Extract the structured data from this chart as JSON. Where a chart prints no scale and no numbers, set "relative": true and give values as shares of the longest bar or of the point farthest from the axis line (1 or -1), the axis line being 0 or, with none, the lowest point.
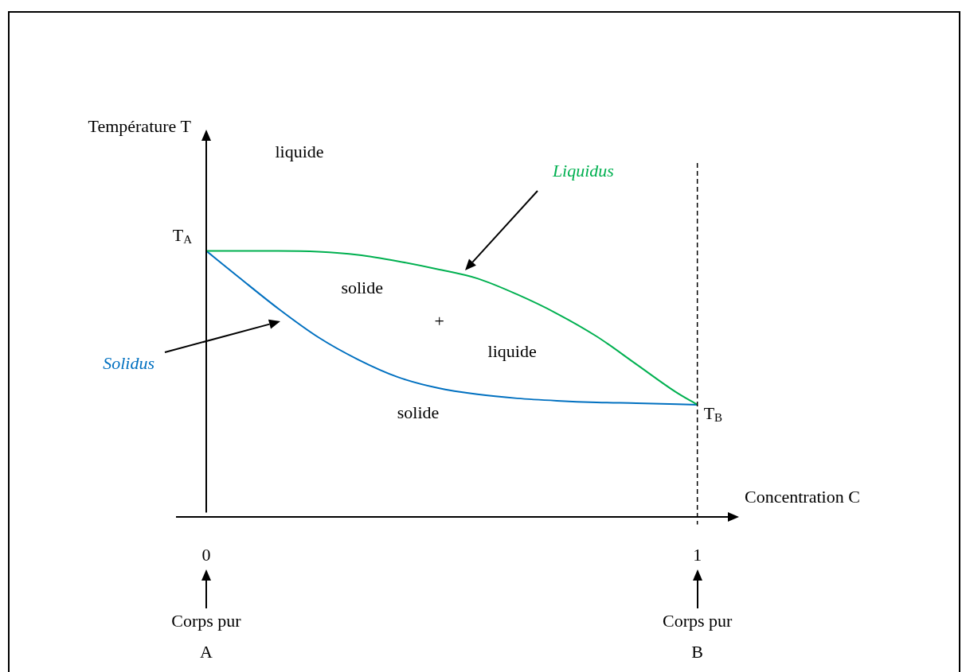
{
  "chart_data": {
    "type": "line",
    "xlabel": "Concentration C",
    "relative": true,
    "xlim": [
      -0.06,
      1.08
    ],
    "xticks": [
      0,
      1
    ],
    "grid": false,
    "legend": false,
    "marker": "none",
    "line_style": "solid",
    "series": [
      {
        "name": "Liquidus",
        "color": "#00b050",
        "x": [
          0,
          0.066,
          0.147,
          0.228,
          0.309,
          0.39,
          0.471,
          0.552,
          0.633,
          0.714,
          0.795,
          0.876,
          0.956,
          1
        ],
        "values": [
          1,
          1,
          1,
          0.997,
          0.985,
          0.961,
          0.931,
          0.896,
          0.836,
          0.764,
          0.678,
          0.573,
          0.469,
          0.421
        ]
      },
      {
        "name": "Solidus",
        "color": "#0070c0",
        "x": [
          0,
          0.066,
          0.147,
          0.228,
          0.309,
          0.39,
          0.471,
          0.552,
          0.633,
          0.714,
          0.795,
          0.876,
          1
        ],
        "values": [
          1,
          0.901,
          0.782,
          0.675,
          0.591,
          0.525,
          0.484,
          0.46,
          0.445,
          0.436,
          0.43,
          0.427,
          0.421
        ]
      }
    ],
    "ref_lines": [
      {
        "axis": "x",
        "value": 1,
        "color": "#000000",
        "line_style": "dashed"
      }
    ],
    "annotations": [
      "Température T",
      "liquide",
      "solide",
      "+",
      "liquide",
      "solide",
      {
        "text": "T$_{A}$",
        "x": 0,
        "y": 1
      },
      {
        "text": "T$_{B}$",
        "x": 1,
        "y": 0.421
      },
      "Corps pur A",
      "Corps pur B"
    ]
  }
}
